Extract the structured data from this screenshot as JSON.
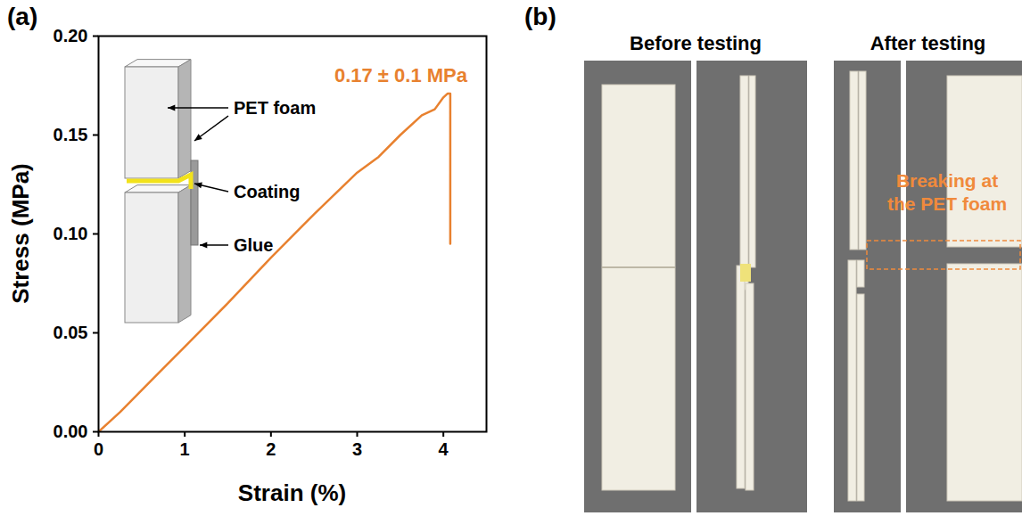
{
  "chart_data": {
    "type": "line",
    "panel_label": "(a)",
    "x_label": "Strain (%)",
    "y_label": "Stress (MPa)",
    "annotations": [
      "0.17 ± 0.1 MPa"
    ],
    "inset_labels": [
      "PET foam",
      "Coating",
      "Glue"
    ],
    "color": "#e8812f",
    "x": [
      0,
      0.25,
      0.5,
      0.75,
      1,
      1.5,
      2,
      2.5,
      3,
      3.25,
      3.5,
      3.75,
      3.9,
      4.0,
      4.05,
      4.07,
      4.08,
      4.08
    ],
    "values": [
      0,
      0.01,
      0.021,
      0.032,
      0.043,
      0.065,
      0.088,
      0.11,
      0.131,
      0.139,
      0.15,
      0.16,
      0.163,
      0.169,
      0.171,
      0.171,
      0.171,
      0.095
    ],
    "xlim": [
      0,
      4.5
    ],
    "xticks": [
      0,
      1,
      2,
      3,
      4
    ],
    "ylim": [
      0,
      0.2
    ],
    "yticks": [
      {
        "value": 0,
        "label": "0.00"
      },
      {
        "value": 0.05,
        "label": "0.05"
      },
      {
        "value": 0.1,
        "label": "0.10"
      },
      {
        "value": 0.15,
        "label": "0.15"
      },
      {
        "value": 0.2,
        "label": "0.20"
      }
    ],
    "grid": false
  },
  "photo_panel": {
    "panel_label": "(b)",
    "groups": [
      {
        "title": "Before testing"
      },
      {
        "title": "After testing",
        "annotation": "Breaking at the PET foam"
      }
    ]
  }
}
